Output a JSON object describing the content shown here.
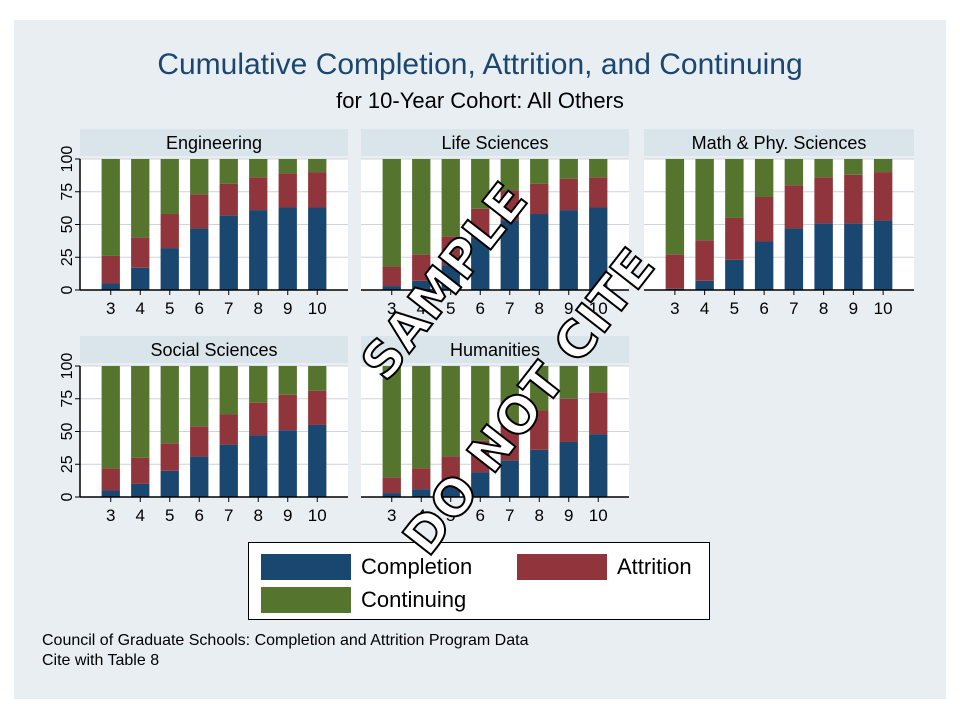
{
  "title": "Cumulative Completion, Attrition, and Continuing",
  "subtitle": "for 10-Year Cohort: All Others",
  "legend": {
    "completion": "Completion",
    "attrition": "Attrition",
    "continuing": "Continuing"
  },
  "colors": {
    "completion": "#1a476f",
    "attrition": "#90353b",
    "continuing": "#55752f",
    "panel_header": "#d9e5ea",
    "grid": "#ced4d8"
  },
  "notes": [
    "Council of Graduate Schools: Completion and Attrition Program Data",
    "Cite with Table 8"
  ],
  "watermark": [
    "SAMPLE",
    "DO NOT CITE"
  ],
  "chart_data": [
    {
      "type": "bar",
      "title": "Engineering",
      "categories": [
        "3",
        "4",
        "5",
        "6",
        "7",
        "8",
        "9",
        "10"
      ],
      "ylim": [
        0,
        100
      ],
      "yticks": [
        "0",
        "25",
        "50",
        "75",
        "100"
      ],
      "series": [
        {
          "name": "Completion",
          "values": [
            5,
            17,
            32,
            47,
            57,
            61,
            63,
            63
          ]
        },
        {
          "name": "Attrition",
          "values": [
            21,
            23,
            26,
            26,
            24,
            25,
            26,
            27
          ]
        },
        {
          "name": "Continuing",
          "values": [
            74,
            60,
            42,
            27,
            19,
            14,
            11,
            10
          ]
        }
      ]
    },
    {
      "type": "bar",
      "title": "Life Sciences",
      "categories": [
        "3",
        "4",
        "5",
        "6",
        "7",
        "8",
        "9",
        "10"
      ],
      "ylim": [
        0,
        100
      ],
      "yticks": [
        "0",
        "25",
        "50",
        "75",
        "100"
      ],
      "series": [
        {
          "name": "Completion",
          "values": [
            3,
            7,
            19,
            40,
            53,
            58,
            61,
            63
          ]
        },
        {
          "name": "Attrition",
          "values": [
            15,
            20,
            22,
            22,
            23,
            23,
            24,
            23
          ]
        },
        {
          "name": "Continuing",
          "values": [
            82,
            73,
            59,
            38,
            24,
            19,
            15,
            14
          ]
        }
      ]
    },
    {
      "type": "bar",
      "title": "Math & Phy. Sciences",
      "categories": [
        "3",
        "4",
        "5",
        "6",
        "7",
        "8",
        "9",
        "10"
      ],
      "ylim": [
        0,
        100
      ],
      "yticks": [
        "0",
        "25",
        "50",
        "75",
        "100"
      ],
      "series": [
        {
          "name": "Completion",
          "values": [
            1,
            7,
            23,
            37,
            47,
            51,
            51,
            53
          ]
        },
        {
          "name": "Attrition",
          "values": [
            26,
            31,
            32,
            34,
            33,
            35,
            37,
            37
          ]
        },
        {
          "name": "Continuing",
          "values": [
            73,
            62,
            45,
            29,
            20,
            14,
            12,
            10
          ]
        }
      ]
    },
    {
      "type": "bar",
      "title": "Social Sciences",
      "categories": [
        "3",
        "4",
        "5",
        "6",
        "7",
        "8",
        "9",
        "10"
      ],
      "ylim": [
        0,
        100
      ],
      "yticks": [
        "0",
        "25",
        "50",
        "75",
        "100"
      ],
      "series": [
        {
          "name": "Completion",
          "values": [
            5,
            10,
            20,
            31,
            40,
            47,
            51,
            55
          ]
        },
        {
          "name": "Attrition",
          "values": [
            17,
            20,
            21,
            23,
            23,
            25,
            27,
            26
          ]
        },
        {
          "name": "Continuing",
          "values": [
            78,
            70,
            59,
            46,
            37,
            28,
            22,
            19
          ]
        }
      ]
    },
    {
      "type": "bar",
      "title": "Humanities",
      "categories": [
        "3",
        "4",
        "5",
        "6",
        "7",
        "8",
        "9",
        "10"
      ],
      "ylim": [
        0,
        100
      ],
      "yticks": [
        "0",
        "25",
        "50",
        "75",
        "100"
      ],
      "series": [
        {
          "name": "Completion",
          "values": [
            3,
            6,
            11,
            19,
            28,
            36,
            42,
            48
          ]
        },
        {
          "name": "Attrition",
          "values": [
            12,
            16,
            20,
            24,
            28,
            30,
            33,
            32
          ]
        },
        {
          "name": "Continuing",
          "values": [
            85,
            78,
            69,
            57,
            44,
            34,
            25,
            20
          ]
        }
      ]
    }
  ]
}
